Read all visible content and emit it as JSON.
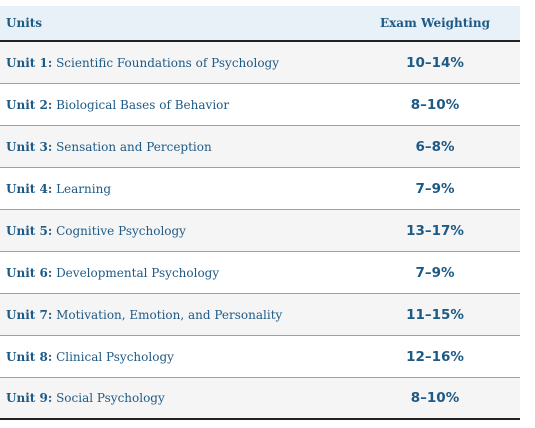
{
  "table": {
    "header": {
      "units_label": "Units",
      "weighting_label": "Exam Weighting"
    },
    "rows": [
      {
        "unit": "Unit 1:",
        "title": " Scientific Foundations of Psychology",
        "weight": "10–14%"
      },
      {
        "unit": "Unit 2:",
        "title": " Biological Bases of Behavior",
        "weight": "8–10%"
      },
      {
        "unit": "Unit 3:",
        "title": " Sensation and Perception",
        "weight": "6–8%"
      },
      {
        "unit": "Unit 4:",
        "title": " Learning",
        "weight": "7–9%"
      },
      {
        "unit": "Unit 5:",
        "title": " Cognitive Psychology",
        "weight": "13–17%"
      },
      {
        "unit": "Unit 6:",
        "title": " Developmental Psychology",
        "weight": "7–9%"
      },
      {
        "unit": "Unit 7:",
        "title": " Motivation, Emotion, and Personality",
        "weight": "11–15%"
      },
      {
        "unit": "Unit 8:",
        "title": " Clinical Psychology",
        "weight": "12–16%"
      },
      {
        "unit": "Unit 9:",
        "title": " Social Psychology",
        "weight": "8–10%"
      }
    ]
  },
  "colors": {
    "text": "#1e5a86",
    "header_bg": "#e8f1f8",
    "row_alt_bg": "#f5f5f5",
    "rule": "#222222"
  }
}
